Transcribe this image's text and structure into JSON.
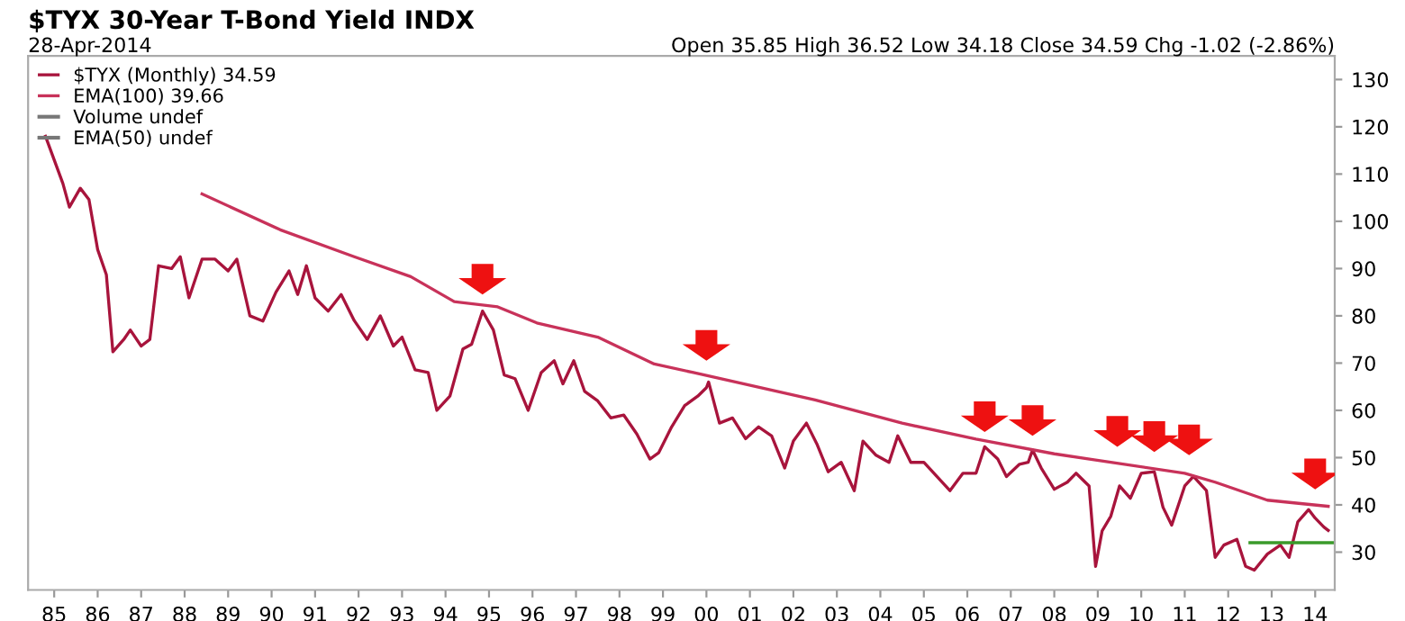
{
  "chart_data": {
    "type": "line",
    "title": "$TYX 30-Year T-Bond Yield INDX",
    "subtitle": "28-Apr-2014",
    "annotations": [
      "Open 35.85 High 36.52 Low 34.18 Close 34.59 Chg -1.02 (-2.86%)",
      "Volume undef",
      "EMA(50) undef"
    ],
    "xlim": [
      1984.4,
      2014.45
    ],
    "ylim": [
      22,
      135
    ],
    "xticks": [
      {
        "value": 1985,
        "label": "85"
      },
      {
        "value": 1986,
        "label": "86"
      },
      {
        "value": 1987,
        "label": "87"
      },
      {
        "value": 1988,
        "label": "88"
      },
      {
        "value": 1989,
        "label": "89"
      },
      {
        "value": 1990,
        "label": "90"
      },
      {
        "value": 1991,
        "label": "91"
      },
      {
        "value": 1992,
        "label": "92"
      },
      {
        "value": 1993,
        "label": "93"
      },
      {
        "value": 1994,
        "label": "94"
      },
      {
        "value": 1995,
        "label": "95"
      },
      {
        "value": 1996,
        "label": "96"
      },
      {
        "value": 1997,
        "label": "97"
      },
      {
        "value": 1998,
        "label": "98"
      },
      {
        "value": 1999,
        "label": "99"
      },
      {
        "value": 2000,
        "label": "00"
      },
      {
        "value": 2001,
        "label": "01"
      },
      {
        "value": 2002,
        "label": "02"
      },
      {
        "value": 2003,
        "label": "03"
      },
      {
        "value": 2004,
        "label": "04"
      },
      {
        "value": 2005,
        "label": "05"
      },
      {
        "value": 2006,
        "label": "06"
      },
      {
        "value": 2007,
        "label": "07"
      },
      {
        "value": 2008,
        "label": "08"
      },
      {
        "value": 2009,
        "label": "09"
      },
      {
        "value": 2010,
        "label": "10"
      },
      {
        "value": 2011,
        "label": "11"
      },
      {
        "value": 2012,
        "label": "12"
      },
      {
        "value": 2013,
        "label": "13"
      },
      {
        "value": 2014,
        "label": "14"
      }
    ],
    "yticks": [
      30,
      40,
      50,
      60,
      70,
      80,
      90,
      100,
      110,
      120,
      130
    ],
    "grid": false,
    "legend": "top left",
    "marker": "none",
    "line_style": "solid",
    "series": [
      {
        "name": "$TYX (Monthly) 34.59",
        "color": "#a8143c",
        "x": [
          1984.8,
          1985.2,
          1985.35,
          1985.6,
          1985.8,
          1986.0,
          1986.2,
          1986.35,
          1986.6,
          1986.75,
          1987.0,
          1987.2,
          1987.4,
          1987.7,
          1987.9,
          1988.1,
          1988.4,
          1988.7,
          1989.0,
          1989.2,
          1989.5,
          1989.8,
          1990.1,
          1990.4,
          1990.6,
          1990.8,
          1991.0,
          1991.3,
          1991.6,
          1991.9,
          1992.2,
          1992.5,
          1992.8,
          1993.0,
          1993.3,
          1993.6,
          1993.8,
          1994.1,
          1994.4,
          1994.6,
          1994.85,
          1995.1,
          1995.35,
          1995.6,
          1995.9,
          1996.2,
          1996.5,
          1996.7,
          1996.95,
          1997.2,
          1997.5,
          1997.8,
          1998.1,
          1998.4,
          1998.7,
          1998.9,
          1999.2,
          1999.5,
          1999.8,
          2000.0,
          2000.05,
          2000.3,
          2000.6,
          2000.9,
          2001.2,
          2001.5,
          2001.8,
          2002.0,
          2002.3,
          2002.55,
          2002.8,
          2003.1,
          2003.4,
          2003.6,
          2003.9,
          2004.2,
          2004.4,
          2004.7,
          2005.0,
          2005.3,
          2005.6,
          2005.9,
          2006.2,
          2006.4,
          2006.7,
          2006.9,
          2007.2,
          2007.4,
          2007.5,
          2007.7,
          2008.0,
          2008.3,
          2008.5,
          2008.8,
          2008.95,
          2009.1,
          2009.3,
          2009.5,
          2009.75,
          2010.0,
          2010.3,
          2010.5,
          2010.7,
          2011.0,
          2011.2,
          2011.5,
          2011.7,
          2011.9,
          2012.2,
          2012.4,
          2012.6,
          2012.9,
          2013.2,
          2013.4,
          2013.6,
          2013.85,
          2014.0,
          2014.2,
          2014.3
        ],
        "values": [
          118,
          108,
          103,
          107,
          104.6,
          94,
          88.7,
          72.4,
          75,
          77,
          73.6,
          75,
          90.6,
          90,
          92.5,
          83.8,
          92,
          92,
          89.5,
          92,
          80,
          78.9,
          85,
          89.5,
          84.5,
          90.6,
          83.8,
          81,
          84.5,
          79,
          75,
          80,
          73.6,
          75.5,
          68.6,
          68,
          60,
          63,
          73,
          74,
          81,
          77,
          67.5,
          66.7,
          60,
          68,
          70.5,
          65.6,
          70.5,
          64,
          62,
          58.4,
          59,
          55,
          49.7,
          51,
          56.5,
          61,
          63,
          64.8,
          66,
          57.3,
          58.4,
          54,
          56.5,
          54.6,
          47.8,
          53.5,
          57.3,
          52.7,
          47,
          49,
          43,
          53.5,
          50.5,
          49,
          54.6,
          49,
          49,
          46,
          43,
          46.7,
          46.7,
          52.3,
          49.7,
          46,
          48.6,
          49,
          51.6,
          47.8,
          43.3,
          44.8,
          46.7,
          44,
          27,
          34.5,
          37.6,
          44,
          41.4,
          46.7,
          47,
          39.5,
          35.7,
          44,
          46,
          43,
          28.9,
          31.5,
          32.7,
          27,
          26.2,
          29.6,
          31.5,
          28.9,
          36.4,
          39,
          37.2,
          35.3,
          34.6
        ]
      },
      {
        "name": "EMA(100) 39.66",
        "color": "#c8325a",
        "x": [
          1988.4,
          1990.2,
          1991.9,
          1993.2,
          1994.2,
          1995.2,
          1996.1,
          1997.5,
          1998.8,
          1999.7,
          2002.5,
          2004.5,
          2006.2,
          2008.0,
          2009.3,
          2011.0,
          2011.7,
          2012.9,
          2014.3
        ],
        "values": [
          105.8,
          98.2,
          92.5,
          88.3,
          83,
          81.9,
          78.5,
          75.5,
          69.8,
          68,
          62.2,
          57.3,
          53.9,
          50.8,
          49,
          46.7,
          44.8,
          41,
          39.7
        ]
      },
      {
        "color": "#3a9a2a",
        "x": [
          2012.5,
          2014.45
        ],
        "values": [
          32,
          32
        ]
      }
    ]
  }
}
